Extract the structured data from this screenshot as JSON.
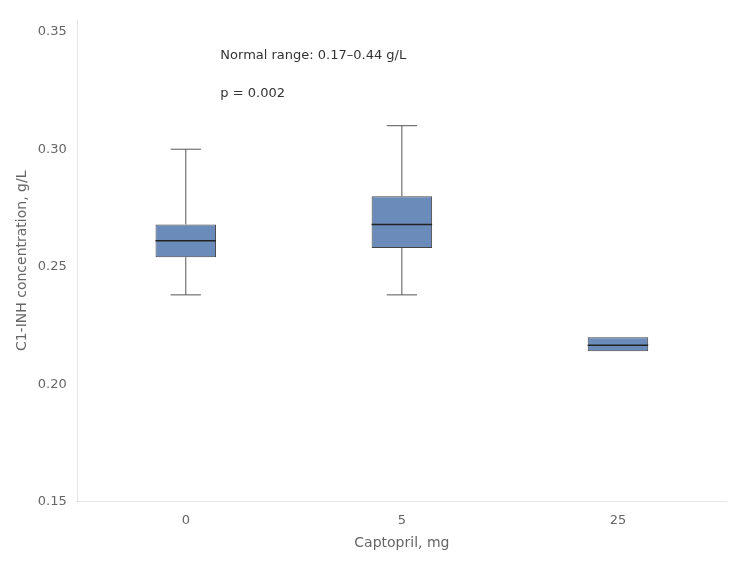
{
  "chart_data": {
    "type": "box",
    "categories": [
      "0",
      "5",
      "25"
    ],
    "x_label": "Captopril, mg",
    "y_label": "C1-INH concentration, g/L",
    "boxes": [
      {
        "q1": 0.254,
        "median": 0.261,
        "q3": 0.268,
        "whisker_low": 0.238,
        "whisker_high": 0.3
      },
      {
        "q1": 0.258,
        "median": 0.268,
        "q3": 0.28,
        "whisker_low": 0.238,
        "whisker_high": 0.31
      },
      {
        "q1": 0.214,
        "median": 0.2165,
        "q3": 0.22,
        "whisker_low": null,
        "whisker_high": null
      }
    ],
    "color": "#6b8cba",
    "ylim": [
      0.15,
      0.355
    ],
    "yticks": [
      0.15,
      {
        "value": 0.2,
        "label": "0.20"
      },
      0.25,
      {
        "value": 0.3,
        "label": "0.30"
      },
      0.35
    ],
    "annotations": [
      "Normal range: 0.17–0.44 g/L",
      "p = 0.002"
    ],
    "grid": false
  }
}
